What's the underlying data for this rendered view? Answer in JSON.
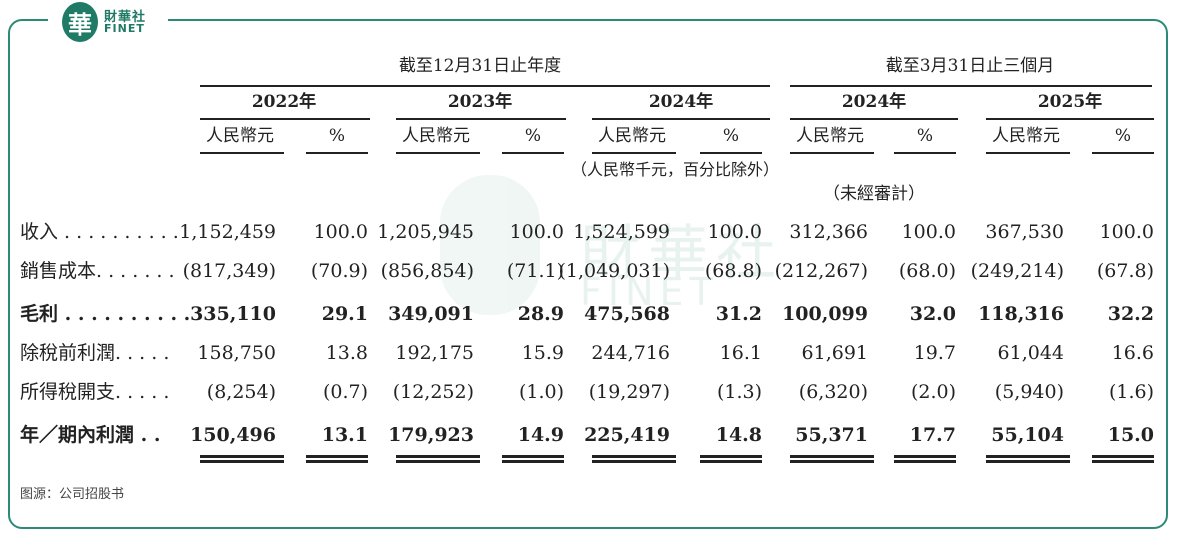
{
  "brand": {
    "seal": "華",
    "cn": "財華社",
    "en": "FINET"
  },
  "watermark": {
    "cn": "財華社",
    "en": "FINET"
  },
  "headers": {
    "group_year": "截至12月31日止年度",
    "group_quarter": "截至3月31日止三個月",
    "years": [
      "2022年",
      "2023年",
      "2024年",
      "2024年",
      "2025年"
    ],
    "currency": "人民幣元",
    "percent": "%",
    "unit_note": "（人民幣千元，百分比除外）",
    "unaudited": "（未經審計）"
  },
  "rows": [
    {
      "label": "收入 . . . . . . . . . .",
      "bold": false,
      "values": [
        "1,152,459",
        "100.0",
        "1,205,945",
        "100.0",
        "1,524,599",
        "100.0",
        "312,366",
        "100.0",
        "367,530",
        "100.0"
      ]
    },
    {
      "label": "銷售成本. . . . . . .",
      "bold": false,
      "values": [
        "(817,349)",
        "(70.9)",
        "(856,854)",
        "(71.1)",
        "(1,049,031)",
        "(68.8)",
        "(212,267)",
        "(68.0)",
        "(249,214)",
        "(67.8)"
      ]
    },
    {
      "label": "毛利 . . . . . . . . . .",
      "bold": true,
      "values": [
        "335,110",
        "29.1",
        "349,091",
        "28.9",
        "475,568",
        "31.2",
        "100,099",
        "32.0",
        "118,316",
        "32.2"
      ]
    },
    {
      "label": "除稅前利潤. . . . .",
      "bold": false,
      "values": [
        "158,750",
        "13.8",
        "192,175",
        "15.9",
        "244,716",
        "16.1",
        "61,691",
        "19.7",
        "61,044",
        "16.6"
      ]
    },
    {
      "label": "所得稅開支. . . . .",
      "bold": false,
      "values": [
        "(8,254)",
        "(0.7)",
        "(12,252)",
        "(1.0)",
        "(19,297)",
        "(1.3)",
        "(6,320)",
        "(2.0)",
        "(5,940)",
        "(1.6)"
      ]
    },
    {
      "label": "年／期內利潤 . .",
      "bold": true,
      "values": [
        "150,496",
        "13.1",
        "179,923",
        "14.9",
        "225,419",
        "14.8",
        "55,371",
        "17.7",
        "55,104",
        "15.0"
      ]
    }
  ],
  "source": "图源：公司招股书"
}
